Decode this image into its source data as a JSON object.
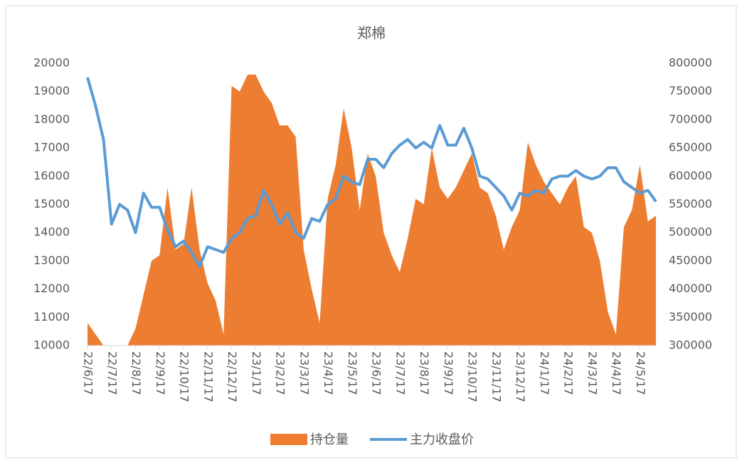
{
  "chart_data": {
    "type": "area-line",
    "title": "郑棉",
    "categories": [
      "22/6/17",
      null,
      null,
      "22/7/17",
      null,
      null,
      "22/8/17",
      null,
      null,
      "22/9/17",
      null,
      null,
      "22/10/17",
      null,
      null,
      "22/11/17",
      null,
      null,
      "22/12/17",
      null,
      null,
      "23/1/17",
      null,
      null,
      "23/2/17",
      null,
      null,
      "23/3/17",
      null,
      null,
      "23/4/17",
      null,
      null,
      "23/5/17",
      null,
      null,
      "23/6/17",
      null,
      null,
      "23/7/17",
      null,
      null,
      "23/8/17",
      null,
      null,
      "23/9/17",
      null,
      null,
      "23/10/17",
      null,
      null,
      "23/11/17",
      null,
      null,
      "23/12/17",
      null,
      null,
      "24/1/17",
      null,
      null,
      "24/2/17",
      null,
      null,
      "24/3/17",
      null,
      null,
      "24/4/17",
      null,
      null,
      "24/5/17",
      null,
      null
    ],
    "series": [
      {
        "name": "持仓量",
        "color": "#ed7d31",
        "axis": "y2",
        "kind": "area",
        "values": [
          340000,
          320000,
          300000,
          300000,
          300000,
          300000,
          330000,
          390000,
          450000,
          460000,
          580000,
          470000,
          480000,
          580000,
          470000,
          410000,
          380000,
          320000,
          760000,
          750000,
          780000,
          780000,
          750000,
          730000,
          690000,
          690000,
          670000,
          470000,
          400000,
          340000,
          560000,
          620000,
          720000,
          650000,
          540000,
          640000,
          600000,
          500000,
          460000,
          430000,
          490000,
          560000,
          550000,
          650000,
          580000,
          560000,
          580000,
          610000,
          640000,
          580000,
          570000,
          530000,
          470000,
          510000,
          540000,
          660000,
          620000,
          590000,
          570000,
          550000,
          580000,
          600000,
          510000,
          500000,
          450000,
          360000,
          320000,
          510000,
          540000,
          620000,
          520000,
          530000
        ]
      },
      {
        "name": "主力收盘价",
        "color": "#5b9bd5",
        "kind": "line",
        "values": [
          19500,
          18500,
          17300,
          14300,
          15000,
          14800,
          14000,
          15400,
          14900,
          14900,
          14100,
          13500,
          13700,
          13300,
          12800,
          13500,
          13400,
          13300,
          13800,
          14000,
          14500,
          14600,
          15500,
          15000,
          14300,
          14700,
          14000,
          13800,
          14500,
          14400,
          15000,
          15200,
          16000,
          15800,
          15700,
          16600,
          16600,
          16300,
          16800,
          17100,
          17300,
          17000,
          17200,
          17000,
          17800,
          17100,
          17100,
          17700,
          17000,
          16000,
          15900,
          15600,
          15300,
          14800,
          15400,
          15300,
          15500,
          15400,
          15900,
          16000,
          16000,
          16200,
          16000,
          15900,
          16000,
          16300,
          16300,
          15800,
          15600,
          15400,
          15500,
          15100
        ]
      }
    ],
    "ylim": [
      10000,
      20000
    ],
    "yticks": [
      10000,
      11000,
      12000,
      13000,
      14000,
      15000,
      16000,
      17000,
      18000,
      19000,
      20000
    ],
    "y2lim": [
      300000,
      800000
    ],
    "y2ticks": [
      300000,
      350000,
      400000,
      450000,
      500000,
      550000,
      600000,
      650000,
      700000,
      750000,
      800000
    ],
    "grid": false,
    "legend": "bottom"
  }
}
